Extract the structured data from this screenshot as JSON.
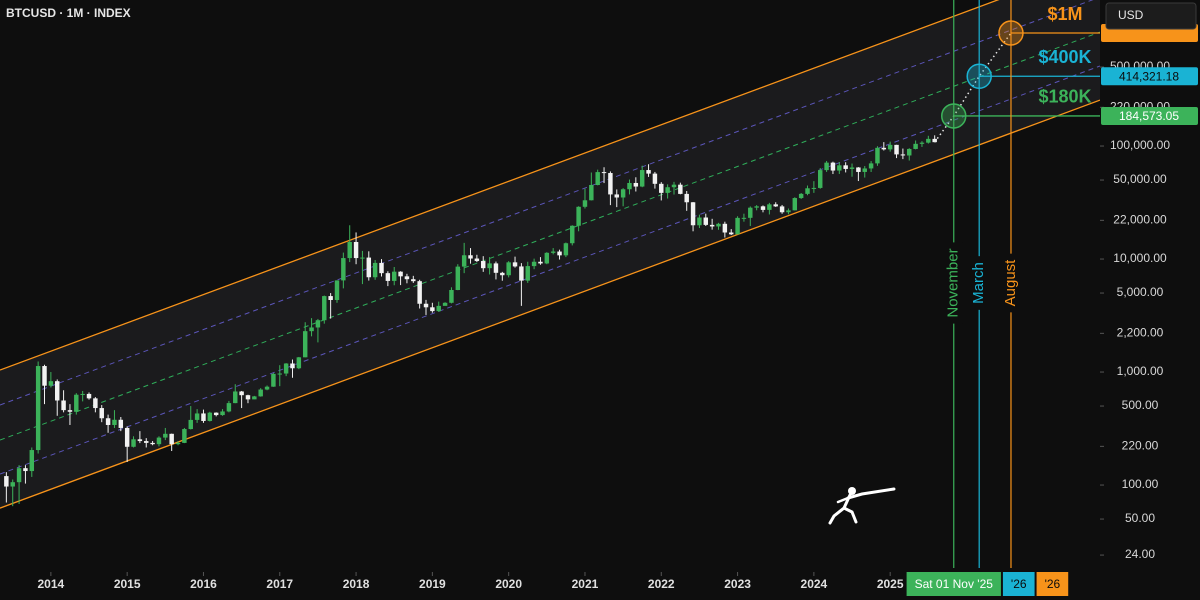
{
  "chart_data": {
    "type": "candlestick",
    "title": "BTCUSD · 1M · INDEX",
    "currency": "USD",
    "log_y": true,
    "xlim": [
      "2013-05",
      "2027-10"
    ],
    "ylim": [
      17,
      1960000
    ],
    "xticks": [
      2014,
      2015,
      2016,
      2017,
      2018,
      2019,
      2020,
      2021,
      2022,
      2023,
      2024,
      2025
    ],
    "yticks": [
      {
        "value": 24,
        "label": "24.00"
      },
      {
        "value": 50,
        "label": "50.00"
      },
      {
        "value": 100,
        "label": "100.00"
      },
      {
        "value": 220,
        "label": "220.00"
      },
      {
        "value": 500,
        "label": "500.00"
      },
      {
        "value": 1000,
        "label": "1,000.00"
      },
      {
        "value": 2200,
        "label": "2,200.00"
      },
      {
        "value": 5000,
        "label": "5,000.00"
      },
      {
        "value": 10000,
        "label": "10,000.00"
      },
      {
        "value": 22000,
        "label": "22,000.00"
      },
      {
        "value": 50000,
        "label": "50,000.00"
      },
      {
        "value": 100000,
        "label": "100,000.00"
      },
      {
        "value": 220000,
        "label": "220,000.00"
      },
      {
        "value": 500000,
        "label": "500,000.00"
      }
    ],
    "band_color": "#1b1b1d",
    "channel": [
      {
        "color": "#f7931a",
        "dash": false,
        "x": [
          "2013-05",
          "2027-10"
        ],
        "values": [
          1042,
          4250000
        ]
      },
      {
        "color": "#5b55b8",
        "dash": true,
        "x": [
          "2013-05",
          "2027-10"
        ],
        "values": [
          511,
          2080000
        ]
      },
      {
        "color": "#2fae5a",
        "dash": true,
        "x": [
          "2013-05",
          "2027-10"
        ],
        "values": [
          250,
          1020000
        ]
      },
      {
        "color": "#5b55b8",
        "dash": true,
        "x": [
          "2013-05",
          "2027-10"
        ],
        "values": [
          125,
          511000
        ]
      },
      {
        "color": "#f7931a",
        "dash": false,
        "x": [
          "2013-05",
          "2027-10"
        ],
        "values": [
          62.5,
          255000
        ]
      }
    ],
    "candles": {
      "up_color": "#3cb35a",
      "down_color": "#f2f2f2",
      "x": [
        "2013-06",
        "2013-07",
        "2013-08",
        "2013-09",
        "2013-10",
        "2013-11",
        "2013-12",
        "2014-01",
        "2014-02",
        "2014-03",
        "2014-04",
        "2014-05",
        "2014-06",
        "2014-07",
        "2014-08",
        "2014-09",
        "2014-10",
        "2014-11",
        "2014-12",
        "2015-01",
        "2015-02",
        "2015-03",
        "2015-04",
        "2015-05",
        "2015-06",
        "2015-07",
        "2015-08",
        "2015-09",
        "2015-10",
        "2015-11",
        "2015-12",
        "2016-01",
        "2016-02",
        "2016-03",
        "2016-04",
        "2016-05",
        "2016-06",
        "2016-07",
        "2016-08",
        "2016-09",
        "2016-10",
        "2016-11",
        "2016-12",
        "2017-01",
        "2017-02",
        "2017-03",
        "2017-04",
        "2017-05",
        "2017-06",
        "2017-07",
        "2017-08",
        "2017-09",
        "2017-10",
        "2017-11",
        "2017-12",
        "2018-01",
        "2018-02",
        "2018-03",
        "2018-04",
        "2018-05",
        "2018-06",
        "2018-07",
        "2018-08",
        "2018-09",
        "2018-10",
        "2018-11",
        "2018-12",
        "2019-01",
        "2019-02",
        "2019-03",
        "2019-04",
        "2019-05",
        "2019-06",
        "2019-07",
        "2019-08",
        "2019-09",
        "2019-10",
        "2019-11",
        "2019-12",
        "2020-01",
        "2020-02",
        "2020-03",
        "2020-04",
        "2020-05",
        "2020-06",
        "2020-07",
        "2020-08",
        "2020-09",
        "2020-10",
        "2020-11",
        "2020-12",
        "2021-01",
        "2021-02",
        "2021-03",
        "2021-04",
        "2021-05",
        "2021-06",
        "2021-07",
        "2021-08",
        "2021-09",
        "2021-10",
        "2021-11",
        "2021-12",
        "2022-01",
        "2022-02",
        "2022-03",
        "2022-04",
        "2022-05",
        "2022-06",
        "2022-07",
        "2022-08",
        "2022-09",
        "2022-10",
        "2022-11",
        "2022-12",
        "2023-01",
        "2023-02",
        "2023-03",
        "2023-04",
        "2023-05",
        "2023-06",
        "2023-07",
        "2023-08",
        "2023-09",
        "2023-10",
        "2023-11",
        "2023-12",
        "2024-01",
        "2024-02",
        "2024-03",
        "2024-04",
        "2024-05",
        "2024-06",
        "2024-07",
        "2024-08",
        "2024-09",
        "2024-10",
        "2024-11",
        "2024-12",
        "2025-01",
        "2025-02",
        "2025-03",
        "2025-04",
        "2025-05",
        "2025-06",
        "2025-07",
        "2025-08"
      ],
      "open": [
        120,
        97,
        106,
        141,
        133,
        204,
        1130,
        757,
        830,
        560,
        460,
        445,
        630,
        640,
        585,
        480,
        390,
        340,
        378,
        320,
        218,
        254,
        245,
        236,
        230,
        263,
        284,
        230,
        236,
        313,
        377,
        430,
        369,
        437,
        416,
        448,
        531,
        673,
        624,
        573,
        609,
        700,
        742,
        963,
        970,
        1190,
        1080,
        1350,
        2300,
        2480,
        2875,
        4700,
        4340,
        6470,
        10200,
        14150,
        10200,
        10300,
        6900,
        9240,
        7500,
        6400,
        7730,
        7030,
        6630,
        6370,
        4020,
        3740,
        3460,
        3850,
        4100,
        5320,
        8570,
        10800,
        10100,
        9600,
        8300,
        9150,
        7550,
        7190,
        9350,
        8600,
        6440,
        8660,
        9460,
        9140,
        11350,
        11650,
        10780,
        13800,
        19700,
        28990,
        33100,
        45200,
        58800,
        57700,
        37300,
        35040,
        41460,
        47100,
        43800,
        61300,
        57000,
        46300,
        38500,
        43200,
        45500,
        37700,
        31800,
        19900,
        23300,
        20050,
        19420,
        20500,
        17170,
        16540,
        23130,
        23150,
        28480,
        29270,
        27220,
        30480,
        29230,
        25940,
        26970,
        34650,
        37720,
        42280,
        42580,
        61200,
        71300,
        60670,
        67500,
        62700,
        64600,
        58970,
        63330,
        70200,
        96400,
        93400,
        102400,
        84300,
        82500,
        94200,
        104600,
        107100,
        115700
      ],
      "high": [
        130,
        112,
        150,
        150,
        215,
        1240,
        1160,
        1000,
        860,
        690,
        520,
        650,
        680,
        660,
        600,
        510,
        420,
        460,
        400,
        330,
        270,
        300,
        260,
        245,
        270,
        320,
        285,
        245,
        320,
        500,
        470,
        465,
        445,
        440,
        470,
        555,
        780,
        680,
        630,
        615,
        720,
        760,
        980,
        1150,
        1200,
        1290,
        1360,
        2760,
        3000,
        2950,
        4750,
        5000,
        6470,
        11400,
        19900,
        17200,
        11800,
        11700,
        9800,
        9990,
        7800,
        8500,
        7800,
        7400,
        7100,
        6550,
        4350,
        4100,
        4200,
        4150,
        5620,
        9000,
        13900,
        12500,
        10900,
        10600,
        10400,
        9500,
        7700,
        9580,
        10500,
        9200,
        9460,
        10080,
        10400,
        11500,
        12500,
        12100,
        14000,
        19900,
        29300,
        41900,
        58300,
        61800,
        64900,
        59600,
        41300,
        42400,
        50500,
        52900,
        67000,
        69000,
        59000,
        47900,
        45800,
        48200,
        47400,
        40000,
        31900,
        24700,
        25200,
        22700,
        20900,
        21400,
        18400,
        23900,
        25200,
        29200,
        30000,
        29800,
        31400,
        31800,
        30100,
        28000,
        35200,
        38400,
        44700,
        48900,
        63900,
        73800,
        72700,
        71900,
        71900,
        70000,
        65100,
        66500,
        73600,
        99600,
        108300,
        109400,
        102500,
        95000,
        95700,
        111900,
        110400,
        123200,
        124400
      ],
      "low": [
        70,
        65,
        68,
        103,
        118,
        190,
        520,
        730,
        410,
        440,
        340,
        420,
        550,
        570,
        440,
        360,
        290,
        320,
        300,
        160,
        215,
        235,
        215,
        225,
        220,
        250,
        200,
        225,
        235,
        310,
        355,
        355,
        365,
        405,
        410,
        440,
        530,
        480,
        530,
        575,
        605,
        690,
        740,
        750,
        920,
        890,
        1060,
        1350,
        2070,
        1830,
        2680,
        2970,
        4100,
        5500,
        9400,
        9000,
        6000,
        6450,
        6550,
        7000,
        5760,
        5860,
        5880,
        6100,
        6150,
        3650,
        3200,
        3350,
        3400,
        3900,
        4050,
        5300,
        7500,
        9100,
        9400,
        7700,
        7300,
        6600,
        6430,
        6880,
        8400,
        3850,
        6150,
        8130,
        8900,
        9000,
        11000,
        9900,
        10400,
        13200,
        17600,
        28000,
        33000,
        44900,
        47000,
        30000,
        28800,
        29300,
        37300,
        39600,
        43200,
        53300,
        42000,
        33000,
        34300,
        37200,
        37400,
        26700,
        17600,
        18800,
        19600,
        18200,
        18150,
        15500,
        16300,
        16500,
        21400,
        19600,
        27000,
        25900,
        24800,
        28900,
        25150,
        24900,
        26900,
        34000,
        36700,
        38500,
        41900,
        59000,
        56500,
        56600,
        58400,
        53500,
        49000,
        52600,
        58900,
        66800,
        91300,
        89200,
        78200,
        76600,
        74400,
        93400,
        98200,
        105100,
        108000
      ],
      "close": [
        97,
        106,
        141,
        133,
        204,
        1130,
        757,
        830,
        560,
        460,
        445,
        630,
        640,
        585,
        480,
        390,
        340,
        378,
        320,
        218,
        254,
        245,
        236,
        230,
        263,
        284,
        230,
        236,
        313,
        377,
        430,
        369,
        437,
        416,
        448,
        531,
        673,
        624,
        573,
        609,
        700,
        742,
        963,
        970,
        1190,
        1080,
        1350,
        2300,
        2480,
        2875,
        4700,
        4340,
        6470,
        10200,
        14150,
        10200,
        10300,
        6900,
        9240,
        7500,
        6400,
        7730,
        7030,
        6630,
        6370,
        4020,
        3740,
        3460,
        3850,
        4100,
        5320,
        8570,
        10800,
        10100,
        9600,
        8300,
        9150,
        7550,
        7190,
        9350,
        8600,
        6440,
        8660,
        9460,
        9140,
        11350,
        11650,
        10780,
        13800,
        19700,
        28990,
        33100,
        45200,
        58800,
        57700,
        37300,
        35040,
        41460,
        47100,
        43800,
        61300,
        57000,
        46300,
        38500,
        43200,
        45500,
        37700,
        31800,
        19900,
        23300,
        20050,
        19420,
        20500,
        17170,
        16540,
        23130,
        23150,
        28480,
        29270,
        27220,
        30480,
        29230,
        25940,
        26970,
        34650,
        37720,
        42280,
        42580,
        61200,
        71300,
        60670,
        67500,
        62700,
        64600,
        58970,
        63330,
        70200,
        96400,
        93400,
        102400,
        84300,
        82500,
        94200,
        104600,
        107100,
        115700,
        108200
      ]
    },
    "projection_color": "#e8e8e8",
    "targets": [
      {
        "x": "2025-11",
        "value": 184573.05,
        "value_label": "184,573.05",
        "label": "$180K",
        "month": "November",
        "date_label": "Sat 01 Nov '25",
        "color": "#3cb35a",
        "text_color": "#ffffff"
      },
      {
        "x": "2026-03",
        "value": 414321.18,
        "value_label": "414,321.18",
        "label": "$400K",
        "month": "March",
        "date_label": "'26",
        "color": "#1ab3d4",
        "text_color": "#0b0b0b"
      },
      {
        "x": "2026-08",
        "value": 1000000,
        "label": "$1M",
        "month": "August",
        "date_label": "'26",
        "color": "#f7931a",
        "text_color": "#0b0b0b"
      }
    ]
  }
}
